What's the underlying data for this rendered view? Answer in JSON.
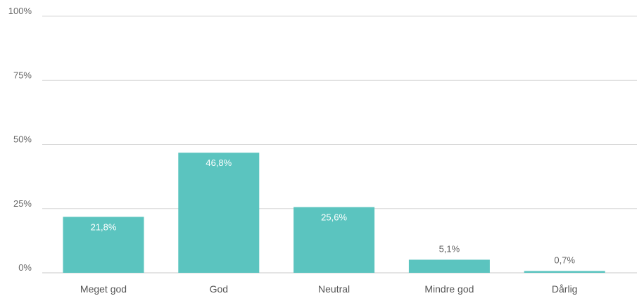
{
  "chart_data": {
    "type": "bar",
    "categories": [
      "Meget god",
      "God",
      "Neutral",
      "Mindre god",
      "Dårlig"
    ],
    "values": [
      21.8,
      46.8,
      25.6,
      5.1,
      0.7
    ],
    "value_labels": [
      "21,8%",
      "46,8%",
      "25,6%",
      "5,1%",
      "0,7%"
    ],
    "y_ticks": [
      0,
      25,
      50,
      75,
      100
    ],
    "y_tick_labels": [
      "0%",
      "25%",
      "50%",
      "75%",
      "100%"
    ],
    "ylim": [
      0,
      100
    ],
    "grid": true,
    "title": "",
    "xlabel": "",
    "ylabel": "",
    "colors": {
      "bar": "#5bc4bf",
      "grid": "#d9d9d9",
      "axis": "#c8c8c8"
    }
  }
}
